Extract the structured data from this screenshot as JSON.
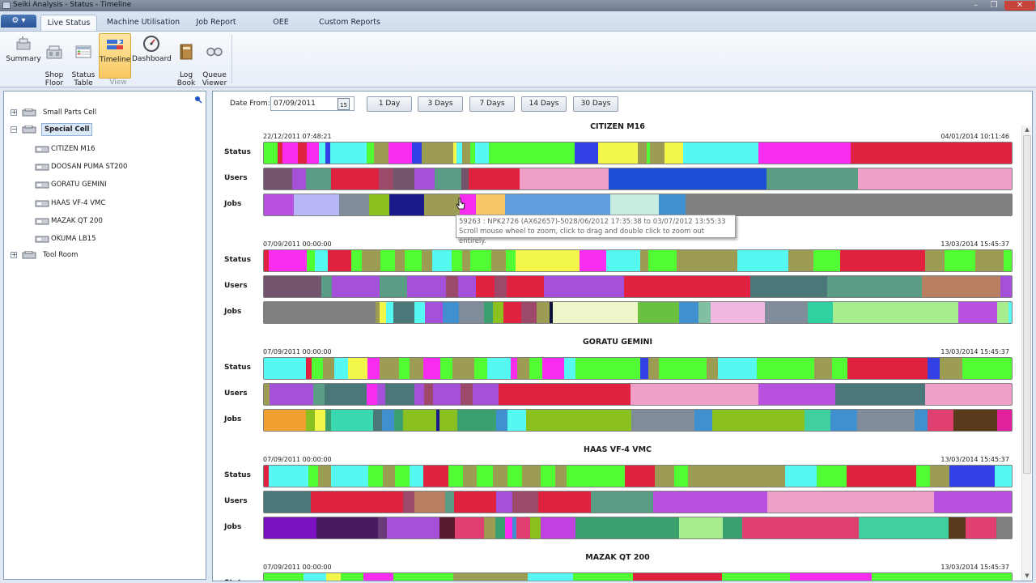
{
  "window": {
    "title": "Seiki Analysis - Status - Timeline",
    "btn_min": "–",
    "btn_max": "❐",
    "btn_close": "✕"
  },
  "ribbon": {
    "menu_glyph": "⚙ ▾",
    "tabs": [
      {
        "label": "Live Status",
        "active": true
      },
      {
        "label": "Machine Utilisation"
      },
      {
        "label": "Job Report"
      },
      {
        "label": "OEE"
      },
      {
        "label": "Custom Reports"
      }
    ],
    "buttons": [
      {
        "label": "Summary",
        "icon": "summary-icon"
      },
      {
        "label": "Shop\nFloor",
        "icon": "shop-floor-icon"
      },
      {
        "label": "Status\nTable",
        "icon": "status-table-icon"
      },
      {
        "label": "Timeline",
        "icon": "timeline-icon",
        "active": true
      },
      {
        "label": "Dashboard",
        "icon": "dashboard-icon"
      },
      {
        "label": "Log\nBook",
        "icon": "log-book-icon"
      },
      {
        "label": "Queue\nViewer",
        "icon": "queue-viewer-icon"
      }
    ],
    "group_label": "View"
  },
  "tree": {
    "nodes": [
      {
        "label": "Small Parts Cell",
        "level": 0,
        "toggle": "+"
      },
      {
        "label": "Special Cell",
        "level": 0,
        "toggle": "−",
        "selected": true
      },
      {
        "label": "CITIZEN M16",
        "level": 1
      },
      {
        "label": "DOOSAN PUMA ST200",
        "level": 1
      },
      {
        "label": "GORATU GEMINI",
        "level": 1
      },
      {
        "label": "HAAS VF-4 VMC",
        "level": 1
      },
      {
        "label": "MAZAK QT 200",
        "level": 1
      },
      {
        "label": "OKUMA LB15",
        "level": 1
      },
      {
        "label": "Tool Room",
        "level": 0,
        "toggle": "+"
      }
    ]
  },
  "filters": {
    "date_from_label": "Date From:",
    "date_from_value": "07/09/2011",
    "calendar_glyph": "15",
    "range_buttons": [
      "1 Day",
      "3 Days",
      "7 Days",
      "14 Days",
      "30 Days"
    ]
  },
  "row_labels": {
    "status": "Status",
    "users": "Users",
    "jobs": "Jobs"
  },
  "machines": [
    {
      "name": "CITIZEN M16",
      "start": "22/12/2011 07:48:21",
      "end": "04/01/2014 10:11:46",
      "status": [
        [
          1.8,
          "#52fc35"
        ],
        [
          0.6,
          "#e0213f"
        ],
        [
          2,
          "#f82df0"
        ],
        [
          1.2,
          "#e0213f"
        ],
        [
          1.6,
          "#f82df0"
        ],
        [
          0.8,
          "#55f9f2"
        ],
        [
          0.7,
          "#3340e6"
        ],
        [
          4.7,
          "#55f9f2"
        ],
        [
          0.9,
          "#52fc35"
        ],
        [
          2,
          "#9c9d52"
        ],
        [
          3,
          "#f82df0"
        ],
        [
          1.3,
          "#3340e6"
        ],
        [
          4.1,
          "#9c9d52"
        ],
        [
          0.4,
          "#f2f74a"
        ],
        [
          0.8,
          "#55f9f2"
        ],
        [
          1,
          "#9c9d52"
        ],
        [
          0.6,
          "#52fc35"
        ],
        [
          1.8,
          "#55f9f2"
        ],
        [
          11.2,
          "#52fc35"
        ],
        [
          3.1,
          "#3340e6"
        ],
        [
          1.5,
          "#f2f74a"
        ],
        [
          3.6,
          "#f2f74a"
        ],
        [
          1.2,
          "#9c9d52"
        ],
        [
          0.4,
          "#52fc35"
        ],
        [
          1.9,
          "#9c9d52"
        ],
        [
          2.5,
          "#f2f74a"
        ],
        [
          9.8,
          "#55f9f2"
        ],
        [
          12,
          "#f82df0"
        ],
        [
          21,
          "#e0213f"
        ]
      ],
      "users": [
        [
          3.8,
          "#72546c"
        ],
        [
          1.8,
          "#a450d8"
        ],
        [
          3.4,
          "#5a9d85"
        ],
        [
          6.3,
          "#e0213f"
        ],
        [
          2,
          "#9d4a6a"
        ],
        [
          2.8,
          "#72546c"
        ],
        [
          2.7,
          "#a450d8"
        ],
        [
          3.5,
          "#5a9d85"
        ],
        [
          1,
          "#72546c"
        ],
        [
          6.8,
          "#e0213f"
        ],
        [
          11.9,
          "#f0a0c8"
        ],
        [
          8,
          "#1f4ed6"
        ],
        [
          13.1,
          "#1f4ed6"
        ],
        [
          12.2,
          "#5a9d85"
        ],
        [
          20.5,
          "#f0a0c8"
        ]
      ],
      "jobs": [
        [
          4,
          "#b850e0"
        ],
        [
          6.1,
          "#b7b7f7"
        ],
        [
          4,
          "#808c9a"
        ],
        [
          2.7,
          "#8ac020"
        ],
        [
          4.6,
          "#1a1a8a"
        ],
        [
          4.8,
          "#9c9d52"
        ],
        [
          2.2,
          "#f82df0"
        ],
        [
          3.8,
          "#f8c868"
        ],
        [
          14.1,
          "#60a0e0"
        ],
        [
          6.5,
          "#c8ece0"
        ],
        [
          3.6,
          "#4090d0"
        ],
        [
          43.6,
          "#808080"
        ]
      ]
    },
    {
      "name": "",
      "start": "07/09/2011 00:00:00",
      "end": "13/03/2014 15:45:37",
      "status": [
        [
          0.6,
          "#e0213f"
        ],
        [
          4.5,
          "#f82df0"
        ],
        [
          1,
          "#52fc35"
        ],
        [
          1.6,
          "#55f9f2"
        ],
        [
          2.8,
          "#e0213f"
        ],
        [
          1.2,
          "#52fc35"
        ],
        [
          2.2,
          "#9c9d52"
        ],
        [
          1.8,
          "#52fc35"
        ],
        [
          1.2,
          "#9c9d52"
        ],
        [
          2,
          "#52fc35"
        ],
        [
          1.2,
          "#9c9d52"
        ],
        [
          2.4,
          "#55f9f2"
        ],
        [
          1.2,
          "#52fc35"
        ],
        [
          1,
          "#9c9d52"
        ],
        [
          2.5,
          "#52fc35"
        ],
        [
          1.8,
          "#9c9d52"
        ],
        [
          1.1,
          "#52fc35"
        ],
        [
          7.7,
          "#f2f74a"
        ],
        [
          3.2,
          "#f82df0"
        ],
        [
          4,
          "#55f9f2"
        ],
        [
          1,
          "#9c9d52"
        ],
        [
          3.4,
          "#52fc35"
        ],
        [
          7.3,
          "#9c9d52"
        ],
        [
          6.1,
          "#55f9f2"
        ],
        [
          3,
          "#9c9d52"
        ],
        [
          3.2,
          "#52fc35"
        ],
        [
          10.1,
          "#e0213f"
        ],
        [
          2.4,
          "#9c9d52"
        ],
        [
          3.6,
          "#52fc35"
        ],
        [
          3.4,
          "#9c9d52"
        ],
        [
          1,
          "#52fc35"
        ]
      ],
      "users": [
        [
          0.8,
          "#72546c"
        ],
        [
          6.8,
          "#72546c"
        ],
        [
          1.4,
          "#5a9d85"
        ],
        [
          6.4,
          "#a450d8"
        ],
        [
          3.6,
          "#5a9d85"
        ],
        [
          5.2,
          "#a450d8"
        ],
        [
          1.6,
          "#9d4a6a"
        ],
        [
          2.4,
          "#a450d8"
        ],
        [
          2.4,
          "#e0213f"
        ],
        [
          1.6,
          "#9d4a6a"
        ],
        [
          5,
          "#e0213f"
        ],
        [
          10.6,
          "#a450d8"
        ],
        [
          6.4,
          "#e0213f"
        ],
        [
          10.4,
          "#e0213f"
        ],
        [
          10.2,
          "#4a7878"
        ],
        [
          12.6,
          "#5a9d85"
        ],
        [
          10.4,
          "#b88060"
        ],
        [
          1.5,
          "#a450d8"
        ]
      ],
      "jobs": [
        [
          15,
          "#808080"
        ],
        [
          0.6,
          "#9c9d52"
        ],
        [
          0.8,
          "#f2f74a"
        ],
        [
          1,
          "#55f9f2"
        ],
        [
          2.8,
          "#4a7878"
        ],
        [
          1.4,
          "#55f9f2"
        ],
        [
          2.4,
          "#a450d8"
        ],
        [
          2.2,
          "#4090d0"
        ],
        [
          3.4,
          "#808c9a"
        ],
        [
          1.2,
          "#3aa070"
        ],
        [
          1.4,
          "#8ac020"
        ],
        [
          2.4,
          "#e0213f"
        ],
        [
          2,
          "#9d4a6a"
        ],
        [
          1.8,
          "#9c9d52"
        ],
        [
          0.4,
          "#101040"
        ],
        [
          11.4,
          "#eef5c8"
        ],
        [
          5.6,
          "#6ac040"
        ],
        [
          2.6,
          "#4090d0"
        ],
        [
          1.6,
          "#80c0a0"
        ],
        [
          7.3,
          "#f0b8e0"
        ],
        [
          5.8,
          "#808c9a"
        ],
        [
          3.4,
          "#30d0a0"
        ],
        [
          16.8,
          "#a8ec90"
        ],
        [
          5.2,
          "#b850e0"
        ],
        [
          1.6,
          "#a8ec90"
        ],
        [
          0.4,
          "#55f9f2"
        ]
      ]
    },
    {
      "name": "GORATU GEMINI",
      "start": "07/09/2011 00:00:00",
      "end": "13/03/2014 15:45:37",
      "status": [
        [
          5.3,
          "#55f9f2"
        ],
        [
          0.8,
          "#e0213f"
        ],
        [
          1.4,
          "#52fc35"
        ],
        [
          1.4,
          "#9c9d52"
        ],
        [
          1.8,
          "#55f9f2"
        ],
        [
          2.4,
          "#f2f74a"
        ],
        [
          1.6,
          "#f82df0"
        ],
        [
          2.4,
          "#9c9d52"
        ],
        [
          1.4,
          "#52fc35"
        ],
        [
          1.7,
          "#9c9d52"
        ],
        [
          2.2,
          "#f82df0"
        ],
        [
          1.5,
          "#52fc35"
        ],
        [
          2.8,
          "#9c9d52"
        ],
        [
          1.6,
          "#52fc35"
        ],
        [
          3,
          "#55f9f2"
        ],
        [
          0.8,
          "#f82df0"
        ],
        [
          1.6,
          "#9c9d52"
        ],
        [
          1.6,
          "#52fc35"
        ],
        [
          2.8,
          "#f82df0"
        ],
        [
          1.4,
          "#55f9f2"
        ],
        [
          3.9,
          "#52fc35"
        ],
        [
          4.3,
          "#52fc35"
        ],
        [
          1,
          "#3340e6"
        ],
        [
          1.4,
          "#9c9d52"
        ],
        [
          6,
          "#52fc35"
        ],
        [
          1.5,
          "#9c9d52"
        ],
        [
          4.9,
          "#55f9f2"
        ],
        [
          7.3,
          "#52fc35"
        ],
        [
          2.2,
          "#9c9d52"
        ],
        [
          2,
          "#52fc35"
        ],
        [
          10.1,
          "#e0213f"
        ],
        [
          1.6,
          "#3340e6"
        ],
        [
          2.8,
          "#9c9d52"
        ],
        [
          6.3,
          "#52fc35"
        ]
      ],
      "users": [
        [
          0.8,
          "#9c9d52"
        ],
        [
          5.8,
          "#a450d8"
        ],
        [
          1.5,
          "#5a9d85"
        ],
        [
          5.7,
          "#4a7878"
        ],
        [
          1.4,
          "#f82df0"
        ],
        [
          1,
          "#a450d8"
        ],
        [
          3.9,
          "#4a7878"
        ],
        [
          1.4,
          "#a450d8"
        ],
        [
          1.1,
          "#9d4a6a"
        ],
        [
          3.7,
          "#a450d8"
        ],
        [
          1.6,
          "#9d4a6a"
        ],
        [
          3.5,
          "#a450d8"
        ],
        [
          17.7,
          "#e0213f"
        ],
        [
          6.6,
          "#f0a0c8"
        ],
        [
          10.5,
          "#f0a0c8"
        ],
        [
          10.3,
          "#b850e0"
        ],
        [
          12,
          "#4a7878"
        ],
        [
          11.6,
          "#f0a0c8"
        ]
      ],
      "jobs": [
        [
          5.6,
          "#f0a030"
        ],
        [
          1.2,
          "#8ac020"
        ],
        [
          1.3,
          "#f2f74a"
        ],
        [
          0.8,
          "#3aa070"
        ],
        [
          5.6,
          "#3ad8b0"
        ],
        [
          1.1,
          "#4a7878"
        ],
        [
          1.6,
          "#4090d0"
        ],
        [
          1.2,
          "#3aa070"
        ],
        [
          4.4,
          "#8ac020"
        ],
        [
          0.4,
          "#1a1a8a"
        ],
        [
          2.4,
          "#8ac020"
        ],
        [
          5.1,
          "#3aa070"
        ],
        [
          1.6,
          "#4090d0"
        ],
        [
          2.4,
          "#55f9f2"
        ],
        [
          13.9,
          "#8ac020"
        ],
        [
          8.4,
          "#808c9a"
        ],
        [
          2.3,
          "#4090d0"
        ],
        [
          12.3,
          "#8ac020"
        ],
        [
          3.4,
          "#40d0a0"
        ],
        [
          3.5,
          "#4090d0"
        ],
        [
          7.6,
          "#808c9a"
        ],
        [
          1.8,
          "#4090d0"
        ],
        [
          3.4,
          "#e04070"
        ],
        [
          5.8,
          "#5a3a1a"
        ],
        [
          1.9,
          "#e0209c"
        ]
      ]
    },
    {
      "name": "HAAS VF-4 VMC",
      "start": "07/09/2011 00:00:00",
      "end": "13/03/2014 15:45:37",
      "status": [
        [
          0.6,
          "#e0213f"
        ],
        [
          5.1,
          "#55f9f2"
        ],
        [
          1.2,
          "#52fc35"
        ],
        [
          1.6,
          "#9c9d52"
        ],
        [
          4.8,
          "#55f9f2"
        ],
        [
          1.8,
          "#52fc35"
        ],
        [
          1.6,
          "#9c9d52"
        ],
        [
          1.8,
          "#52fc35"
        ],
        [
          1.8,
          "#55f9f2"
        ],
        [
          3.2,
          "#e0213f"
        ],
        [
          1.8,
          "#52fc35"
        ],
        [
          1.8,
          "#9c9d52"
        ],
        [
          2.1,
          "#52fc35"
        ],
        [
          1.8,
          "#9c9d52"
        ],
        [
          1.9,
          "#52fc35"
        ],
        [
          2.3,
          "#9c9d52"
        ],
        [
          1.9,
          "#52fc35"
        ],
        [
          1.4,
          "#9c9d52"
        ],
        [
          1.8,
          "#52fc35"
        ],
        [
          5.7,
          "#52fc35"
        ],
        [
          3.8,
          "#e0213f"
        ],
        [
          2.4,
          "#9c9d52"
        ],
        [
          1.8,
          "#52fc35"
        ],
        [
          12.4,
          "#9c9d52"
        ],
        [
          4,
          "#55f9f2"
        ],
        [
          3.8,
          "#52fc35"
        ],
        [
          8.8,
          "#e0213f"
        ],
        [
          1.8,
          "#52fc35"
        ],
        [
          2.5,
          "#9c9d52"
        ],
        [
          5.7,
          "#3340e6"
        ],
        [
          2.2,
          "#55f9f2"
        ]
      ],
      "users": [
        [
          7,
          "#4a7878"
        ],
        [
          7.2,
          "#e0213f"
        ],
        [
          6.5,
          "#e0213f"
        ],
        [
          1.8,
          "#9d4a6a"
        ],
        [
          4.5,
          "#b88060"
        ],
        [
          1.4,
          "#5a9d85"
        ],
        [
          6.2,
          "#e0213f"
        ],
        [
          2.4,
          "#a450d8"
        ],
        [
          3.9,
          "#9d4a6a"
        ],
        [
          7.8,
          "#e0213f"
        ],
        [
          9.3,
          "#5a9d85"
        ],
        [
          6.6,
          "#b850e0"
        ],
        [
          10.5,
          "#b850e0"
        ],
        [
          9.6,
          "#f0a0c8"
        ],
        [
          12.6,
          "#f0a0c8"
        ],
        [
          2.6,
          "#f0a0c8"
        ],
        [
          11.6,
          "#b850e0"
        ]
      ],
      "jobs": [
        [
          7,
          "#7a10c0"
        ],
        [
          8.2,
          "#4a1a60"
        ],
        [
          1.2,
          "#6a3a7a"
        ],
        [
          3.5,
          "#a450d8"
        ],
        [
          3.5,
          "#a450d8"
        ],
        [
          2.1,
          "#5a1a30"
        ],
        [
          3.8,
          "#e04070"
        ],
        [
          1.6,
          "#9c9d52"
        ],
        [
          1.2,
          "#3aa070"
        ],
        [
          1,
          "#f82df0"
        ],
        [
          0.6,
          "#4090d0"
        ],
        [
          1.8,
          "#e04070"
        ],
        [
          1.4,
          "#8ac020"
        ],
        [
          4.6,
          "#c040e0"
        ],
        [
          13.9,
          "#3aa070"
        ],
        [
          5.8,
          "#a8ec90"
        ],
        [
          2.6,
          "#3aa070"
        ],
        [
          15.5,
          "#e04070"
        ],
        [
          12,
          "#40d0a0"
        ],
        [
          2.2,
          "#5a3a1a"
        ],
        [
          4.1,
          "#e04070"
        ],
        [
          2.1,
          "#808080"
        ]
      ]
    },
    {
      "name": "MAZAK QT 200",
      "start": "07/09/2011 00:00:00",
      "end": "13/03/2014 15:45:37",
      "status": [
        [
          5.3,
          "#52fc35"
        ],
        [
          3,
          "#55f9f2"
        ],
        [
          2,
          "#f2f74a"
        ],
        [
          3,
          "#52fc35"
        ],
        [
          4,
          "#f82df0"
        ],
        [
          8,
          "#52fc35"
        ],
        [
          10,
          "#9c9d52"
        ],
        [
          6,
          "#55f9f2"
        ],
        [
          8,
          "#52fc35"
        ],
        [
          12,
          "#e0213f"
        ],
        [
          9,
          "#52fc35"
        ],
        [
          11,
          "#f82df0"
        ],
        [
          18.7,
          "#52fc35"
        ]
      ]
    }
  ],
  "tooltip": {
    "line1": "59263 : NPK2726 (AX62657)-5028/06/2012 17:35:38 to 03/07/2012 13:55:33",
    "line2": "Scroll mouse wheel to zoom, click to drag and double click to zoom out entirely."
  }
}
